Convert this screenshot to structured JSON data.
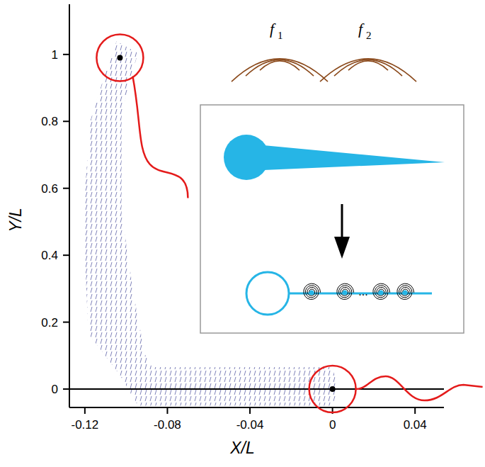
{
  "chart_data": {
    "type": "scatter",
    "x_label": "X/L",
    "y_label": "Y/L",
    "xlim": [
      -0.1275,
      0.054
    ],
    "ylim": [
      -0.055,
      1.15
    ],
    "xticks": [
      -0.12,
      -0.08,
      -0.04,
      0,
      0.04
    ],
    "yticks": [
      0,
      0.2,
      0.4,
      0.6,
      0.8,
      1
    ],
    "series": [
      {
        "x": [
          0,
          -0.103
        ],
        "values": [
          0,
          0.99
        ],
        "color": "#000000",
        "marker": "circle"
      }
    ],
    "band": {
      "x": [
        -0.1046,
        -0.0943,
        -0.0978,
        -0.1022,
        -0.1022,
        -0.0961,
        -0.0909,
        -0.0875,
        0,
        0.0027,
        0,
        -0.0943,
        -0.1029,
        -0.1184,
        -0.1208,
        -0.1173,
        -0.1098
      ],
      "y": [
        1.04,
        1.004,
        0.93,
        0.824,
        0.528,
        0.273,
        0.104,
        0.066,
        0.066,
        0.002,
        -0.05,
        -0.05,
        0.04,
        0.167,
        0.528,
        0.803,
        0.951
      ],
      "color": "#6f72b0"
    },
    "annotations": [
      {
        "text": "f",
        "subscript": "1"
      },
      {
        "text": "f",
        "subscript": "2"
      },
      {
        "text": "..."
      }
    ]
  }
}
